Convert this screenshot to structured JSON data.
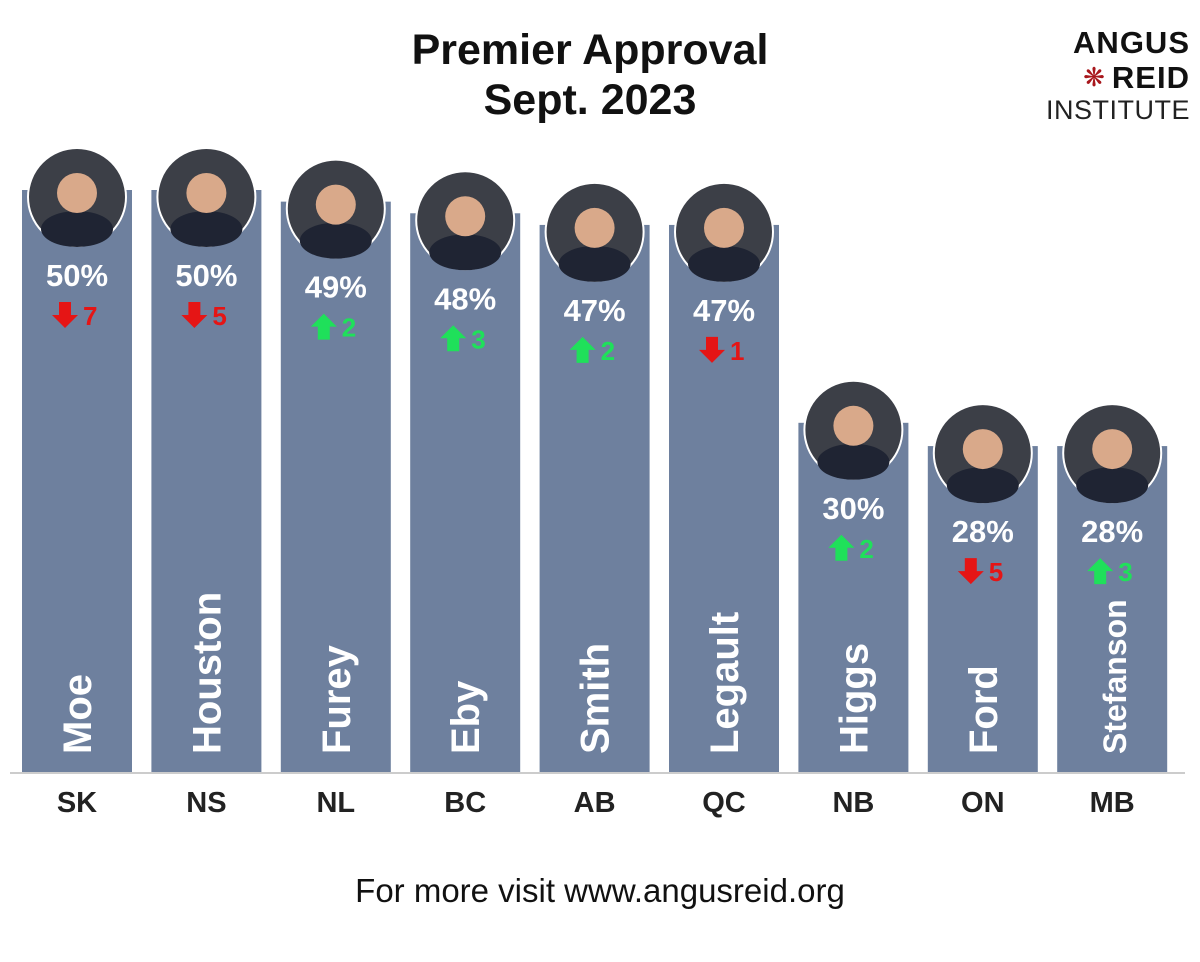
{
  "title_line1": "Premier Approval",
  "title_line2": "Sept. 2023",
  "logo": {
    "line1": "ANGUS",
    "line2": "REID",
    "line3": "INSTITUTE",
    "icon": "maple-leaf-icon"
  },
  "footer": "For more visit www.angusreid.org",
  "colors": {
    "bar": "#6e809e",
    "up": "#1fe05a",
    "down": "#e51515",
    "axis": "#cccccc"
  },
  "chart_data": {
    "type": "bar",
    "title": "Premier Approval Sept. 2023",
    "categories": [
      "SK",
      "NS",
      "NL",
      "BC",
      "AB",
      "QC",
      "NB",
      "ON",
      "MB"
    ],
    "premiers": [
      "Moe",
      "Houston",
      "Furey",
      "Eby",
      "Smith",
      "Legault",
      "Higgs",
      "Ford",
      "Stefanson"
    ],
    "values": [
      50,
      50,
      49,
      48,
      47,
      47,
      30,
      28,
      28
    ],
    "value_labels": [
      "50%",
      "50%",
      "49%",
      "48%",
      "47%",
      "47%",
      "30%",
      "28%",
      "28%"
    ],
    "change": [
      {
        "direction": "down",
        "amount": "7"
      },
      {
        "direction": "down",
        "amount": "5"
      },
      {
        "direction": "up",
        "amount": "2"
      },
      {
        "direction": "up",
        "amount": "3"
      },
      {
        "direction": "up",
        "amount": "2"
      },
      {
        "direction": "down",
        "amount": "1"
      },
      {
        "direction": "up",
        "amount": "2"
      },
      {
        "direction": "down",
        "amount": "5"
      },
      {
        "direction": "up",
        "amount": "3"
      }
    ],
    "ylim": [
      0,
      50
    ],
    "grid": false,
    "legend": "none"
  }
}
